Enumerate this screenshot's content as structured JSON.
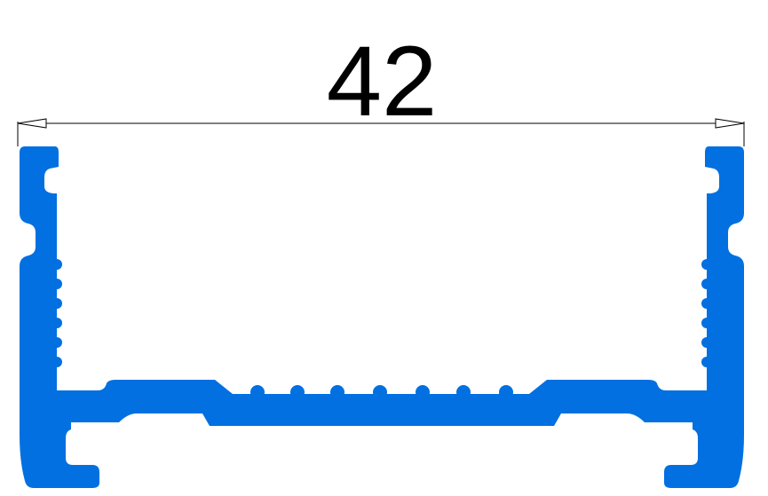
{
  "dimension": {
    "value": "42"
  },
  "colors": {
    "profile": "#0270E0",
    "dimension_line": "#000000",
    "background": "#FFFFFF"
  }
}
